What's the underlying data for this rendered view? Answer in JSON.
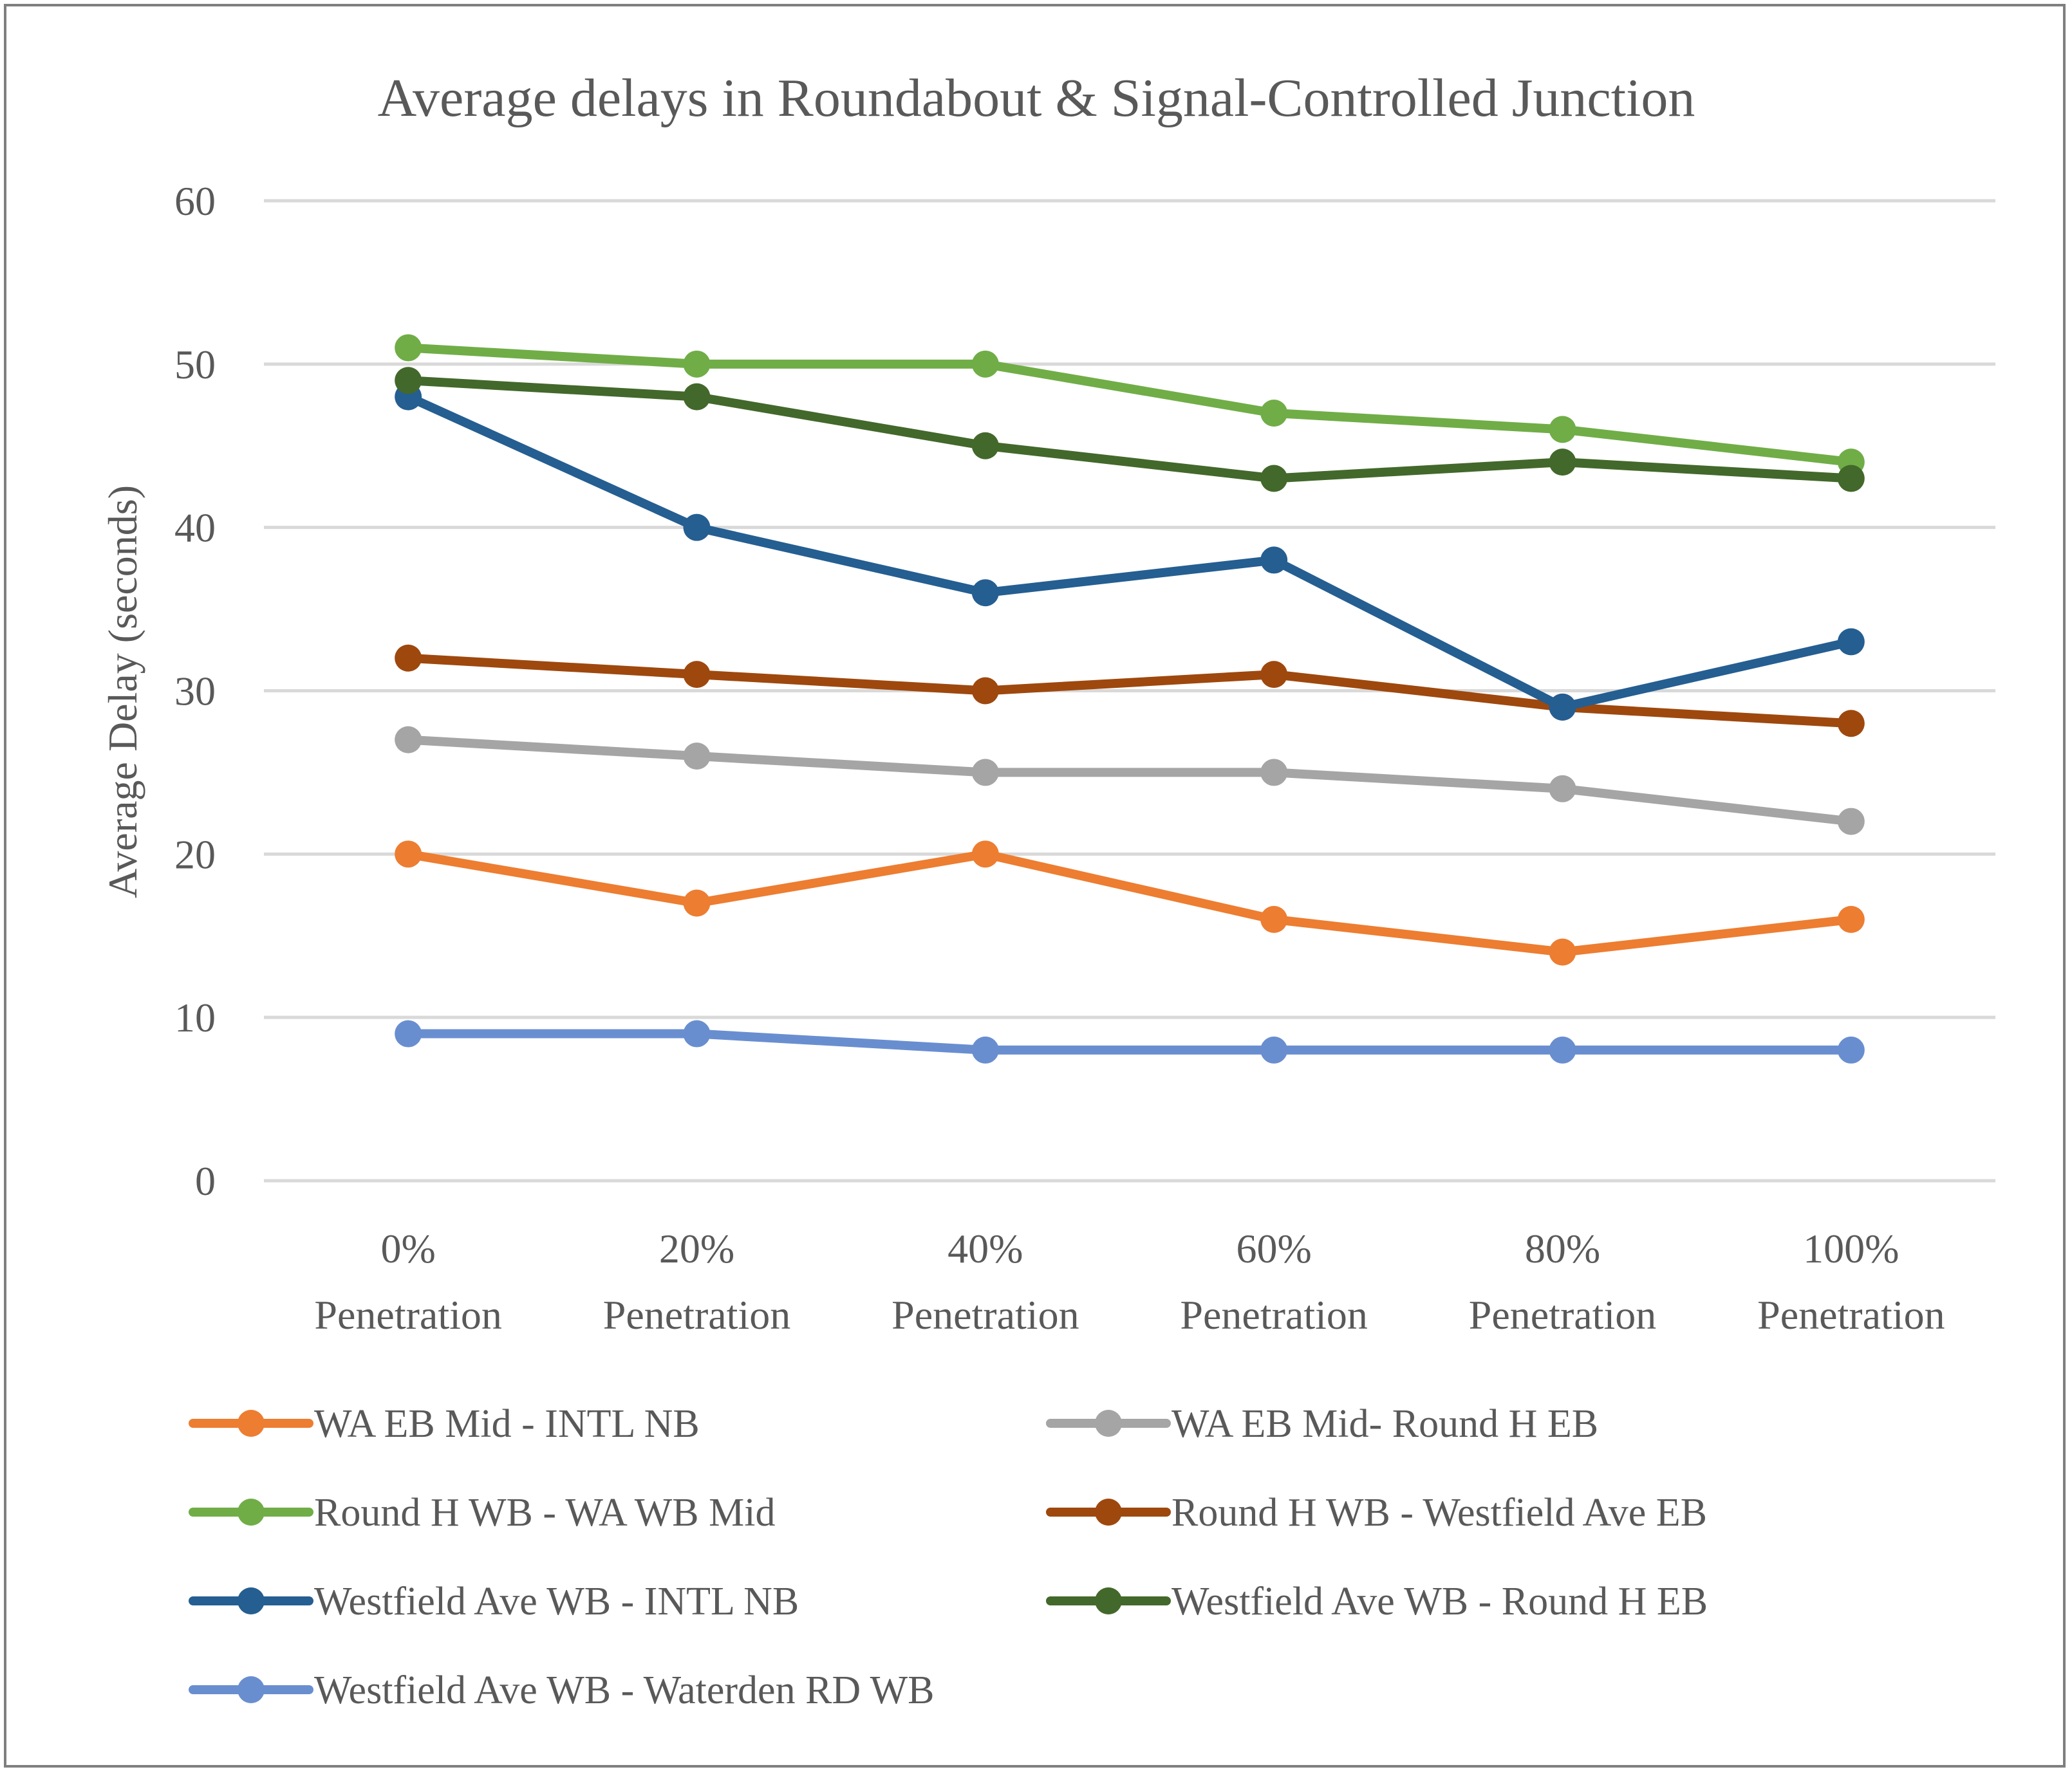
{
  "chart_data": {
    "type": "line",
    "title": "Average delays in Roundabout & Signal-Controlled Junction",
    "xlabel": "",
    "ylabel": "Average Delay (seconds)",
    "ylim": [
      0,
      60
    ],
    "yticks": [
      0,
      10,
      20,
      30,
      40,
      50,
      60
    ],
    "grid": true,
    "legend_position": "bottom",
    "categories": [
      [
        "0%",
        "Penetration"
      ],
      [
        "20%",
        "Penetration"
      ],
      [
        "40%",
        "Penetration"
      ],
      [
        "60%",
        "Penetration"
      ],
      [
        "80%",
        "Penetration"
      ],
      [
        "100%",
        "Penetration"
      ]
    ],
    "series": [
      {
        "name": "WA EB Mid - INTL NB",
        "color": "#ed7d31",
        "values": [
          20,
          17,
          20,
          16,
          14,
          16
        ]
      },
      {
        "name": "WA EB Mid- Round H EB",
        "color": "#a5a5a5",
        "values": [
          27,
          26,
          25,
          25,
          24,
          22
        ]
      },
      {
        "name": "Round H WB - WA WB Mid",
        "color": "#70ad47",
        "values": [
          51,
          50,
          50,
          47,
          46,
          44
        ]
      },
      {
        "name": "Round H WB - Westfield Ave EB",
        "color": "#9e480e",
        "values": [
          32,
          31,
          30,
          31,
          29,
          28
        ]
      },
      {
        "name": "Westfield Ave WB - INTL NB",
        "color": "#255e91",
        "values": [
          48,
          40,
          36,
          38,
          29,
          33
        ]
      },
      {
        "name": "Westfield Ave WB - Round H EB",
        "color": "#43682b",
        "values": [
          49,
          48,
          45,
          43,
          44,
          43
        ]
      },
      {
        "name": "Westfield Ave WB - Waterden RD WB",
        "color": "#698ed0",
        "values": [
          9,
          9,
          8,
          8,
          8,
          8
        ]
      }
    ]
  }
}
